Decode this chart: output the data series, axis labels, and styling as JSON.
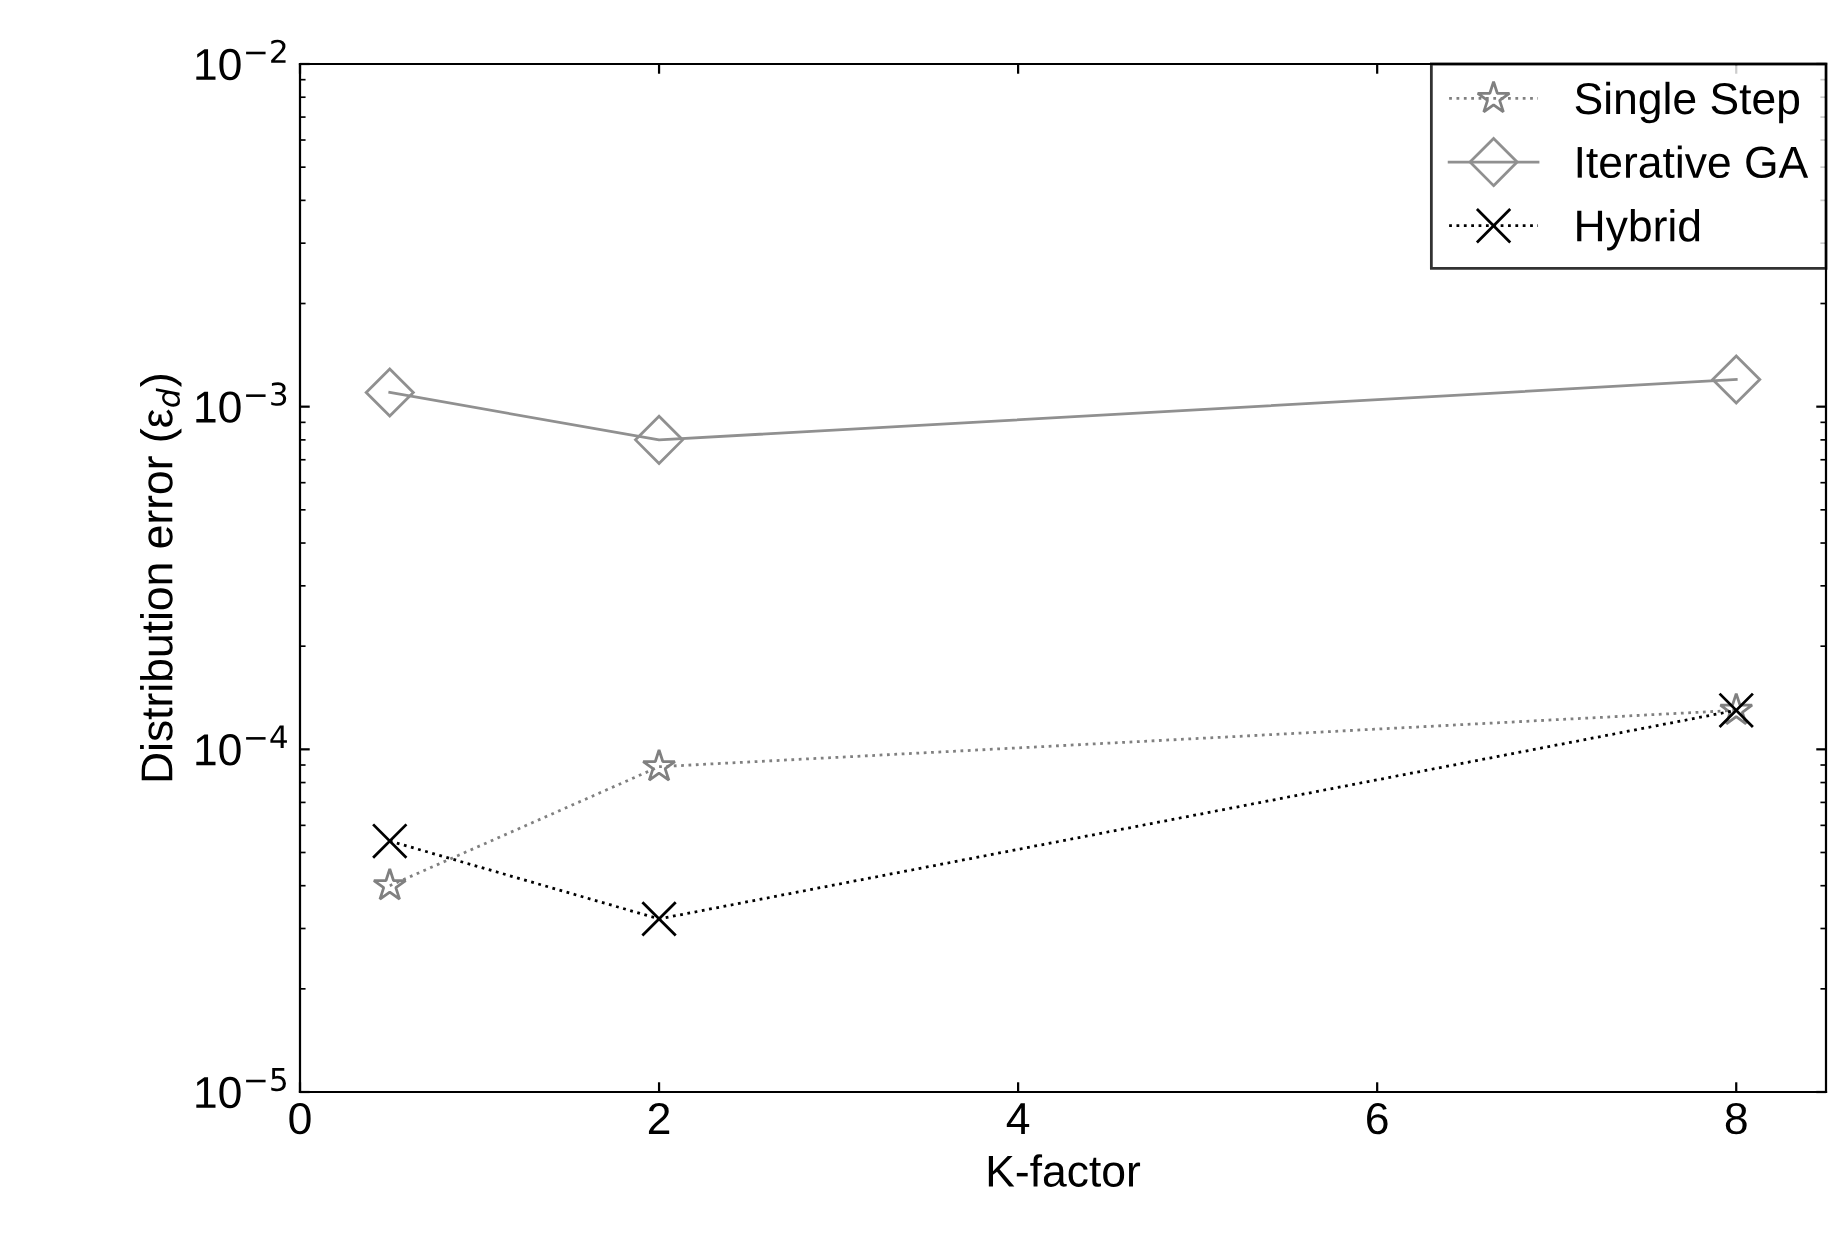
{
  "chart_data": {
    "type": "line",
    "xlabel": "K-factor",
    "ylabel": "Distribution error (ε$_{d}$)",
    "x": [
      0.5,
      2,
      8
    ],
    "series": [
      {
        "name": "Single Step",
        "color": "#808080",
        "marker": "star",
        "line_style": "dotted",
        "values": [
          4e-05,
          8.9e-05,
          0.00013
        ]
      },
      {
        "name": "Iterative GA",
        "color": "#909090",
        "marker": "diamond",
        "line_style": "solid",
        "values": [
          0.0011,
          0.0008,
          0.0012
        ]
      },
      {
        "name": "Hybrid",
        "color": "#000000",
        "marker": "cross",
        "line_style": "dotted",
        "values": [
          5.4e-05,
          3.2e-05,
          0.00013
        ]
      }
    ],
    "log": "y",
    "xlim": [
      0,
      8.5
    ],
    "ylim": [
      1e-05,
      0.01
    ],
    "xticks": [
      0,
      2,
      4,
      6,
      8
    ],
    "yticks": [
      {
        "value": 1e-05,
        "label": "10$^{−5}$"
      },
      {
        "value": 0.0001,
        "label": "10$^{−4}$"
      },
      {
        "value": 0.001,
        "label": "10$^{−3}$"
      },
      {
        "value": 0.01,
        "label": "10$^{−2}$"
      }
    ],
    "grid": false,
    "legend": "top right"
  }
}
